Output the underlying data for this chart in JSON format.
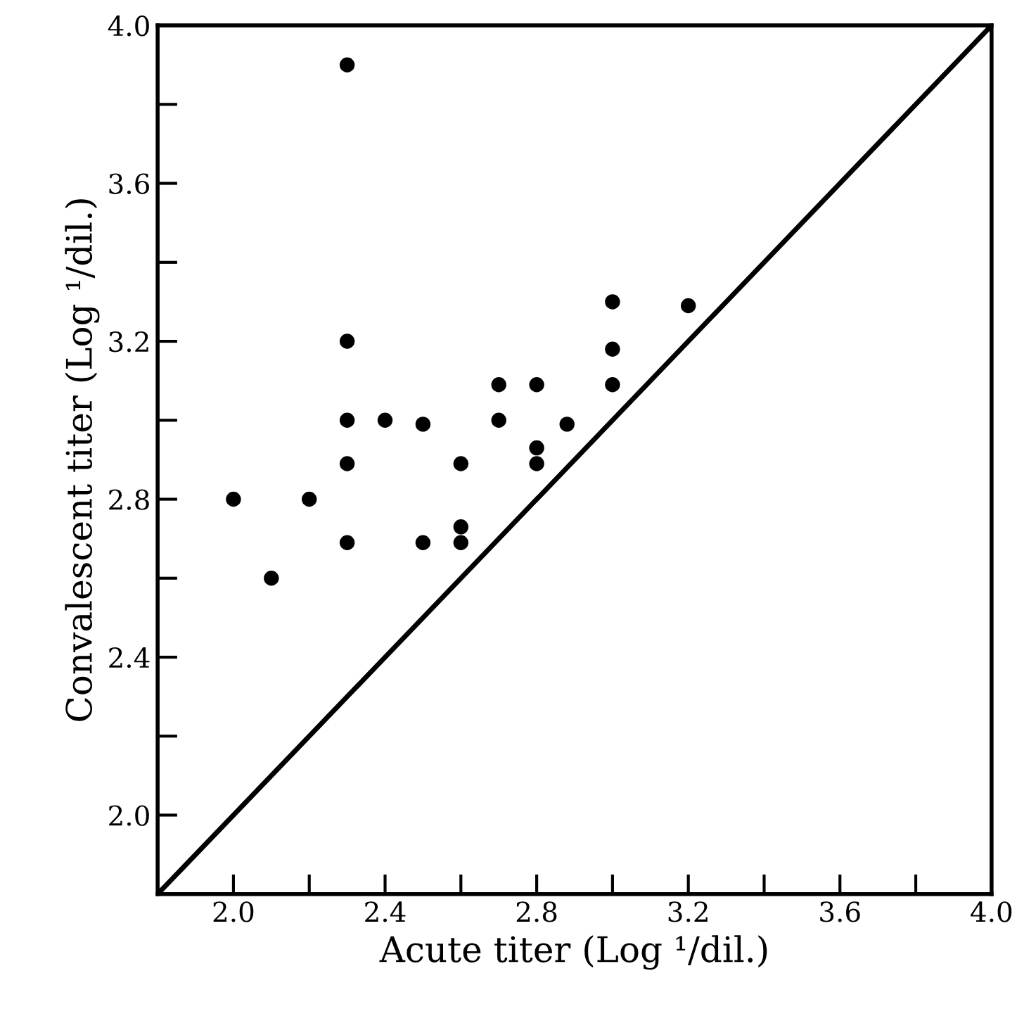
{
  "chart_data": {
    "type": "scatter",
    "xlabel": "Acute titer (Log ¹/dil.)",
    "ylabel": "Convalescent titer (Log ¹/dil.)",
    "xlim": [
      1.8,
      4.0
    ],
    "ylim": [
      1.8,
      4.0
    ],
    "xticks": [
      {
        "value": 2.0,
        "label": "2.0"
      },
      {
        "value": 2.2,
        "label": null
      },
      2.4,
      {
        "value": 2.6,
        "label": null
      },
      2.8,
      {
        "value": 3.0,
        "label": null
      },
      3.2,
      {
        "value": 3.4,
        "label": null
      },
      3.6,
      {
        "value": 3.8,
        "label": null
      },
      {
        "value": 4.0,
        "label": "4.0"
      }
    ],
    "yticks": [
      {
        "value": 2.0,
        "label": "2.0"
      },
      {
        "value": 2.2,
        "label": null
      },
      2.4,
      {
        "value": 2.6,
        "label": null
      },
      2.8,
      {
        "value": 3.0,
        "label": null
      },
      3.2,
      {
        "value": 3.4,
        "label": null
      },
      3.6,
      {
        "value": 3.8,
        "label": null
      },
      {
        "value": 4.0,
        "label": "4.0"
      }
    ],
    "grid": false,
    "series": [
      {
        "marker": "circle",
        "color": "#000000",
        "x": [
          2.3,
          2.3,
          2.3,
          2.4,
          2.5,
          2.3,
          2.6,
          2.7,
          2.8,
          3.0,
          3.2,
          3.0,
          3.0,
          2.7,
          2.88,
          2.8,
          2.8,
          2.0,
          2.2,
          2.6,
          2.3,
          2.5,
          2.6,
          2.1
        ],
        "values": [
          3.9,
          3.2,
          3.0,
          3.0,
          2.99,
          2.89,
          2.89,
          3.09,
          3.09,
          3.3,
          3.29,
          3.18,
          3.09,
          3.0,
          2.99,
          2.93,
          2.89,
          2.8,
          2.8,
          2.73,
          2.69,
          2.69,
          2.69,
          2.6
        ]
      },
      {
        "type": "line",
        "marker": "none",
        "color": "#000000",
        "x": [
          1.8,
          4.0
        ],
        "values": [
          1.8,
          4.0
        ]
      }
    ]
  }
}
